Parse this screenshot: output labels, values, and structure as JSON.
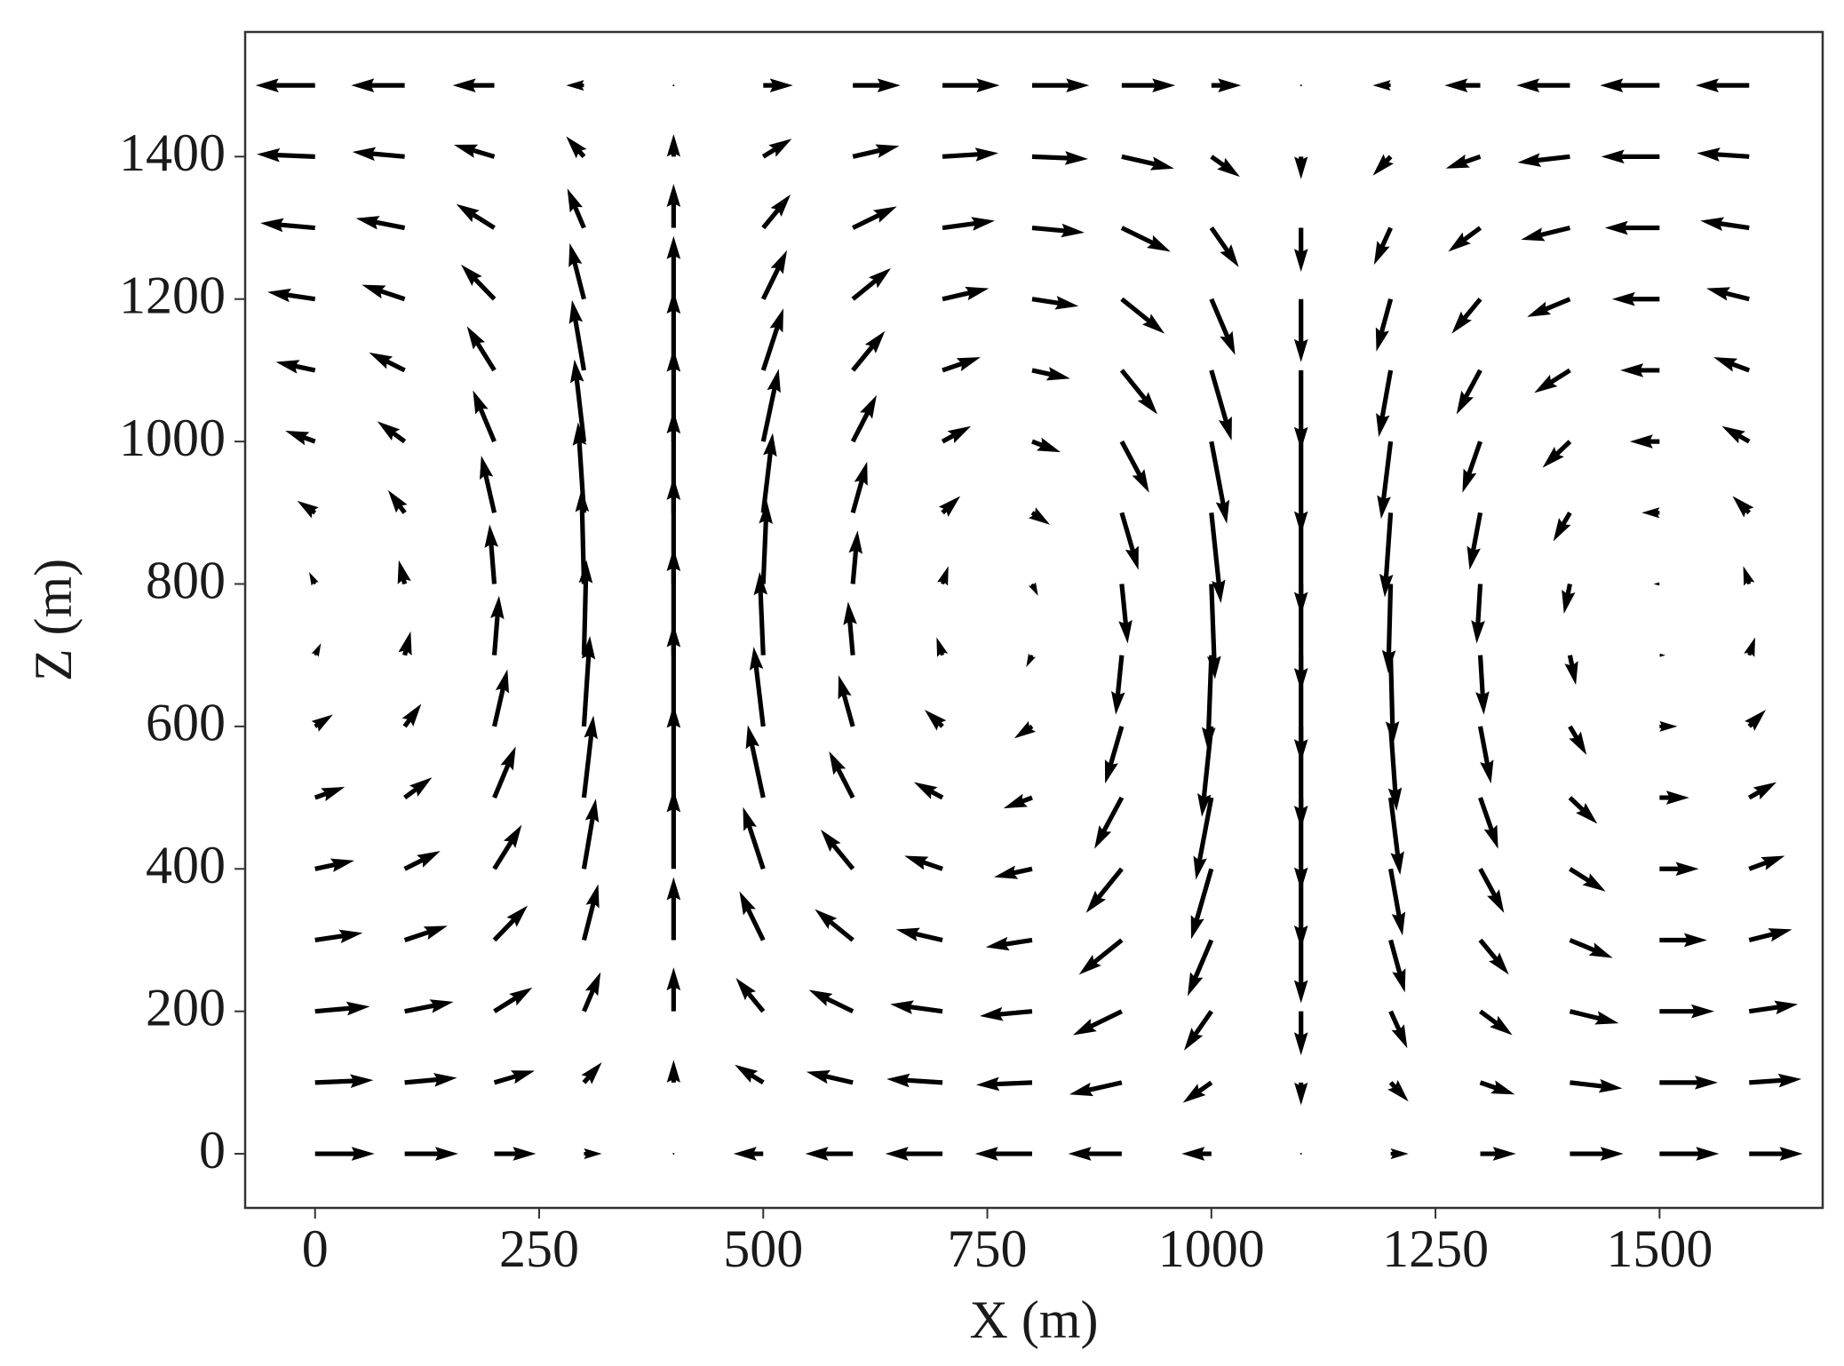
{
  "chart_data": {
    "type": "quiver",
    "xlabel": "X (m)",
    "ylabel": "Z (m)",
    "x": [
      0,
      100,
      200,
      300,
      400,
      500,
      600,
      700,
      800,
      900,
      1000,
      1100,
      1200,
      1300,
      1400,
      1500,
      1600
    ],
    "z": [
      1500,
      1400,
      1300,
      1200,
      1100,
      1000,
      900,
      800,
      700,
      600,
      500,
      400,
      300,
      200,
      100,
      0
    ],
    "u": [
      [
        -5,
        -4.5,
        -3.5,
        -1.5,
        0,
        2.5,
        4,
        4.8,
        4.8,
        4.5,
        2.5,
        0,
        -1.5,
        -3,
        -4.5,
        -5,
        -4.5
      ],
      [
        -4.9,
        -4.4,
        -3.4,
        -1.5,
        0,
        2.4,
        3.9,
        4.7,
        4.7,
        4.4,
        2.4,
        0,
        -1.5,
        -2.9,
        -4.4,
        -4.9,
        -4.4
      ],
      [
        -4.6,
        -4.1,
        -3.2,
        -1.4,
        0,
        2.3,
        3.7,
        4.4,
        4.4,
        4.1,
        2.3,
        0,
        -1.4,
        -2.7,
        -4.1,
        -4.6,
        -4.1
      ],
      [
        -4.0,
        -3.6,
        -2.8,
        -1.2,
        0,
        2.0,
        3.2,
        3.9,
        3.9,
        3.6,
        2.0,
        0,
        -1.2,
        -2.4,
        -3.6,
        -4.0,
        -3.6
      ],
      [
        -3.3,
        -3.0,
        -2.3,
        -1.0,
        0,
        1.7,
        2.7,
        3.2,
        3.2,
        3.0,
        1.7,
        0,
        -1.0,
        -2.0,
        -3.0,
        -3.3,
        -3.0
      ],
      [
        -2.5,
        -2.3,
        -1.8,
        -0.8,
        0,
        1.3,
        2.0,
        2.4,
        2.4,
        2.3,
        1.3,
        0,
        -0.8,
        -1.5,
        -2.3,
        -2.5,
        -2.3
      ],
      [
        -1.5,
        -1.4,
        -1.1,
        -0.5,
        0,
        0.8,
        1.2,
        1.5,
        1.5,
        1.4,
        0.8,
        0,
        -0.5,
        -0.9,
        -1.4,
        -1.5,
        -1.4
      ],
      [
        -0.5,
        -0.5,
        -0.4,
        -0.2,
        0,
        0.3,
        0.4,
        0.5,
        0.5,
        0.5,
        0.3,
        0,
        -0.2,
        -0.3,
        -0.5,
        -0.5,
        -0.5
      ],
      [
        0.5,
        0.5,
        0.4,
        0.2,
        0,
        -0.3,
        -0.4,
        -0.5,
        -0.5,
        -0.5,
        -0.3,
        0,
        0.2,
        0.3,
        0.5,
        0.5,
        0.5
      ],
      [
        1.5,
        1.4,
        1.1,
        0.5,
        0,
        -0.8,
        -1.2,
        -1.5,
        -1.5,
        -1.4,
        -0.8,
        0,
        0.5,
        0.9,
        1.4,
        1.5,
        1.4
      ],
      [
        2.5,
        2.3,
        1.8,
        0.8,
        0,
        -1.3,
        -2.0,
        -2.4,
        -2.4,
        -2.3,
        -1.3,
        0,
        0.8,
        1.5,
        2.3,
        2.5,
        2.3
      ],
      [
        3.3,
        3.0,
        2.3,
        1.0,
        0,
        -1.7,
        -2.7,
        -3.2,
        -3.2,
        -3.0,
        -1.7,
        0,
        1.0,
        2.0,
        3.0,
        3.3,
        3.0
      ],
      [
        4.0,
        3.6,
        2.8,
        1.2,
        0,
        -2.0,
        -3.2,
        -3.9,
        -3.9,
        -3.6,
        -2.0,
        0,
        1.2,
        2.4,
        3.6,
        4.0,
        3.6
      ],
      [
        4.6,
        4.1,
        3.2,
        1.4,
        0,
        -2.3,
        -3.7,
        -4.4,
        -4.4,
        -4.1,
        -2.3,
        0,
        1.4,
        2.7,
        4.1,
        4.6,
        4.1
      ],
      [
        4.9,
        4.4,
        3.4,
        1.5,
        0,
        -2.4,
        -3.9,
        -4.7,
        -4.7,
        -4.4,
        -2.4,
        0,
        1.5,
        2.9,
        4.4,
        4.9,
        4.4
      ],
      [
        5,
        4.5,
        3.5,
        1.5,
        0,
        -2.5,
        -4,
        -4.8,
        -4.8,
        -4.5,
        -2.5,
        0,
        1.5,
        3,
        4.5,
        5,
        4.5
      ]
    ],
    "w": [
      [
        0,
        0,
        0,
        0,
        0,
        0,
        0,
        0,
        0,
        0,
        0,
        0,
        0,
        0,
        0,
        0,
        0
      ],
      [
        0.2,
        0.4,
        1.0,
        1.7,
        1.9,
        1.5,
        0.9,
        0.3,
        -0.2,
        -1.0,
        -1.7,
        -1.9,
        -1.6,
        -1.0,
        -0.5,
        0,
        0.3
      ],
      [
        0.4,
        0.8,
        2.0,
        3.3,
        3.7,
        2.8,
        1.8,
        0.6,
        -0.4,
        -2.0,
        -3.3,
        -3.7,
        -3.1,
        -2.0,
        -1.0,
        0,
        0.6
      ],
      [
        0.6,
        1.2,
        2.9,
        4.7,
        5.3,
        4.1,
        2.6,
        0.9,
        -0.6,
        -2.9,
        -4.7,
        -5.3,
        -4.4,
        -2.9,
        -1.5,
        0,
        0.9
      ],
      [
        0.7,
        1.5,
        3.7,
        5.9,
        6.7,
        5.2,
        3.3,
        1.1,
        -0.7,
        -3.7,
        -5.9,
        -6.7,
        -5.6,
        -3.7,
        -1.9,
        0,
        1.1
      ],
      [
        0.9,
        1.7,
        4.3,
        6.9,
        7.8,
        6.1,
        3.9,
        1.3,
        -0.9,
        -4.3,
        -6.9,
        -7.8,
        -6.5,
        -4.3,
        -2.2,
        0,
        1.3
      ],
      [
        1.0,
        1.9,
        4.8,
        7.6,
        8.6,
        6.7,
        4.3,
        1.4,
        -1.0,
        -4.8,
        -7.6,
        -8.6,
        -7.1,
        -4.8,
        -2.4,
        0,
        1.4
      ],
      [
        1.0,
        2.0,
        5.0,
        8.0,
        9.0,
        7.0,
        4.5,
        1.5,
        -1.0,
        -5.0,
        -8.0,
        -9.0,
        -7.5,
        -5.0,
        -2.5,
        0,
        1.5
      ],
      [
        1.0,
        2.0,
        5.0,
        8.0,
        9.0,
        7.0,
        4.5,
        1.5,
        -1.0,
        -5.0,
        -8.0,
        -9.0,
        -7.5,
        -5.0,
        -2.5,
        0,
        1.5
      ],
      [
        1.0,
        1.9,
        4.8,
        7.6,
        8.6,
        6.7,
        4.3,
        1.4,
        -1.0,
        -4.8,
        -7.6,
        -8.6,
        -7.1,
        -4.8,
        -2.4,
        0,
        1.4
      ],
      [
        0.9,
        1.7,
        4.3,
        6.9,
        7.8,
        6.1,
        3.9,
        1.3,
        -0.9,
        -4.3,
        -6.9,
        -7.8,
        -6.5,
        -4.3,
        -2.2,
        0,
        1.3
      ],
      [
        0.7,
        1.5,
        3.7,
        5.9,
        6.7,
        5.2,
        3.3,
        1.1,
        -0.7,
        -3.7,
        -5.9,
        -6.7,
        -5.6,
        -3.7,
        -1.9,
        0,
        1.1
      ],
      [
        0.6,
        1.2,
        2.9,
        4.7,
        5.3,
        4.1,
        2.6,
        0.9,
        -0.6,
        -2.9,
        -4.7,
        -5.3,
        -4.4,
        -2.9,
        -1.5,
        0,
        0.9
      ],
      [
        0.4,
        0.8,
        2.0,
        3.3,
        3.7,
        2.8,
        1.8,
        0.6,
        -0.4,
        -2.0,
        -3.3,
        -3.7,
        -3.1,
        -2.0,
        -1.0,
        0,
        0.6
      ],
      [
        0.2,
        0.4,
        1.0,
        1.7,
        1.9,
        1.5,
        0.9,
        0.3,
        -0.2,
        -1.0,
        -1.7,
        -1.9,
        -1.6,
        -1.0,
        -0.5,
        0,
        0.3
      ],
      [
        0,
        0,
        0,
        0,
        0,
        0,
        0,
        0,
        0,
        0,
        0,
        0,
        0,
        0,
        0,
        0,
        0
      ]
    ],
    "color": "#000000",
    "xlim": [
      -78,
      1682
    ],
    "ylim": [
      -76,
      1575
    ],
    "xticks": [
      0,
      250,
      500,
      750,
      1000,
      1250,
      1500
    ],
    "yticks": [
      0,
      200,
      400,
      600,
      800,
      1000,
      1200,
      1400
    ],
    "grid": false
  }
}
